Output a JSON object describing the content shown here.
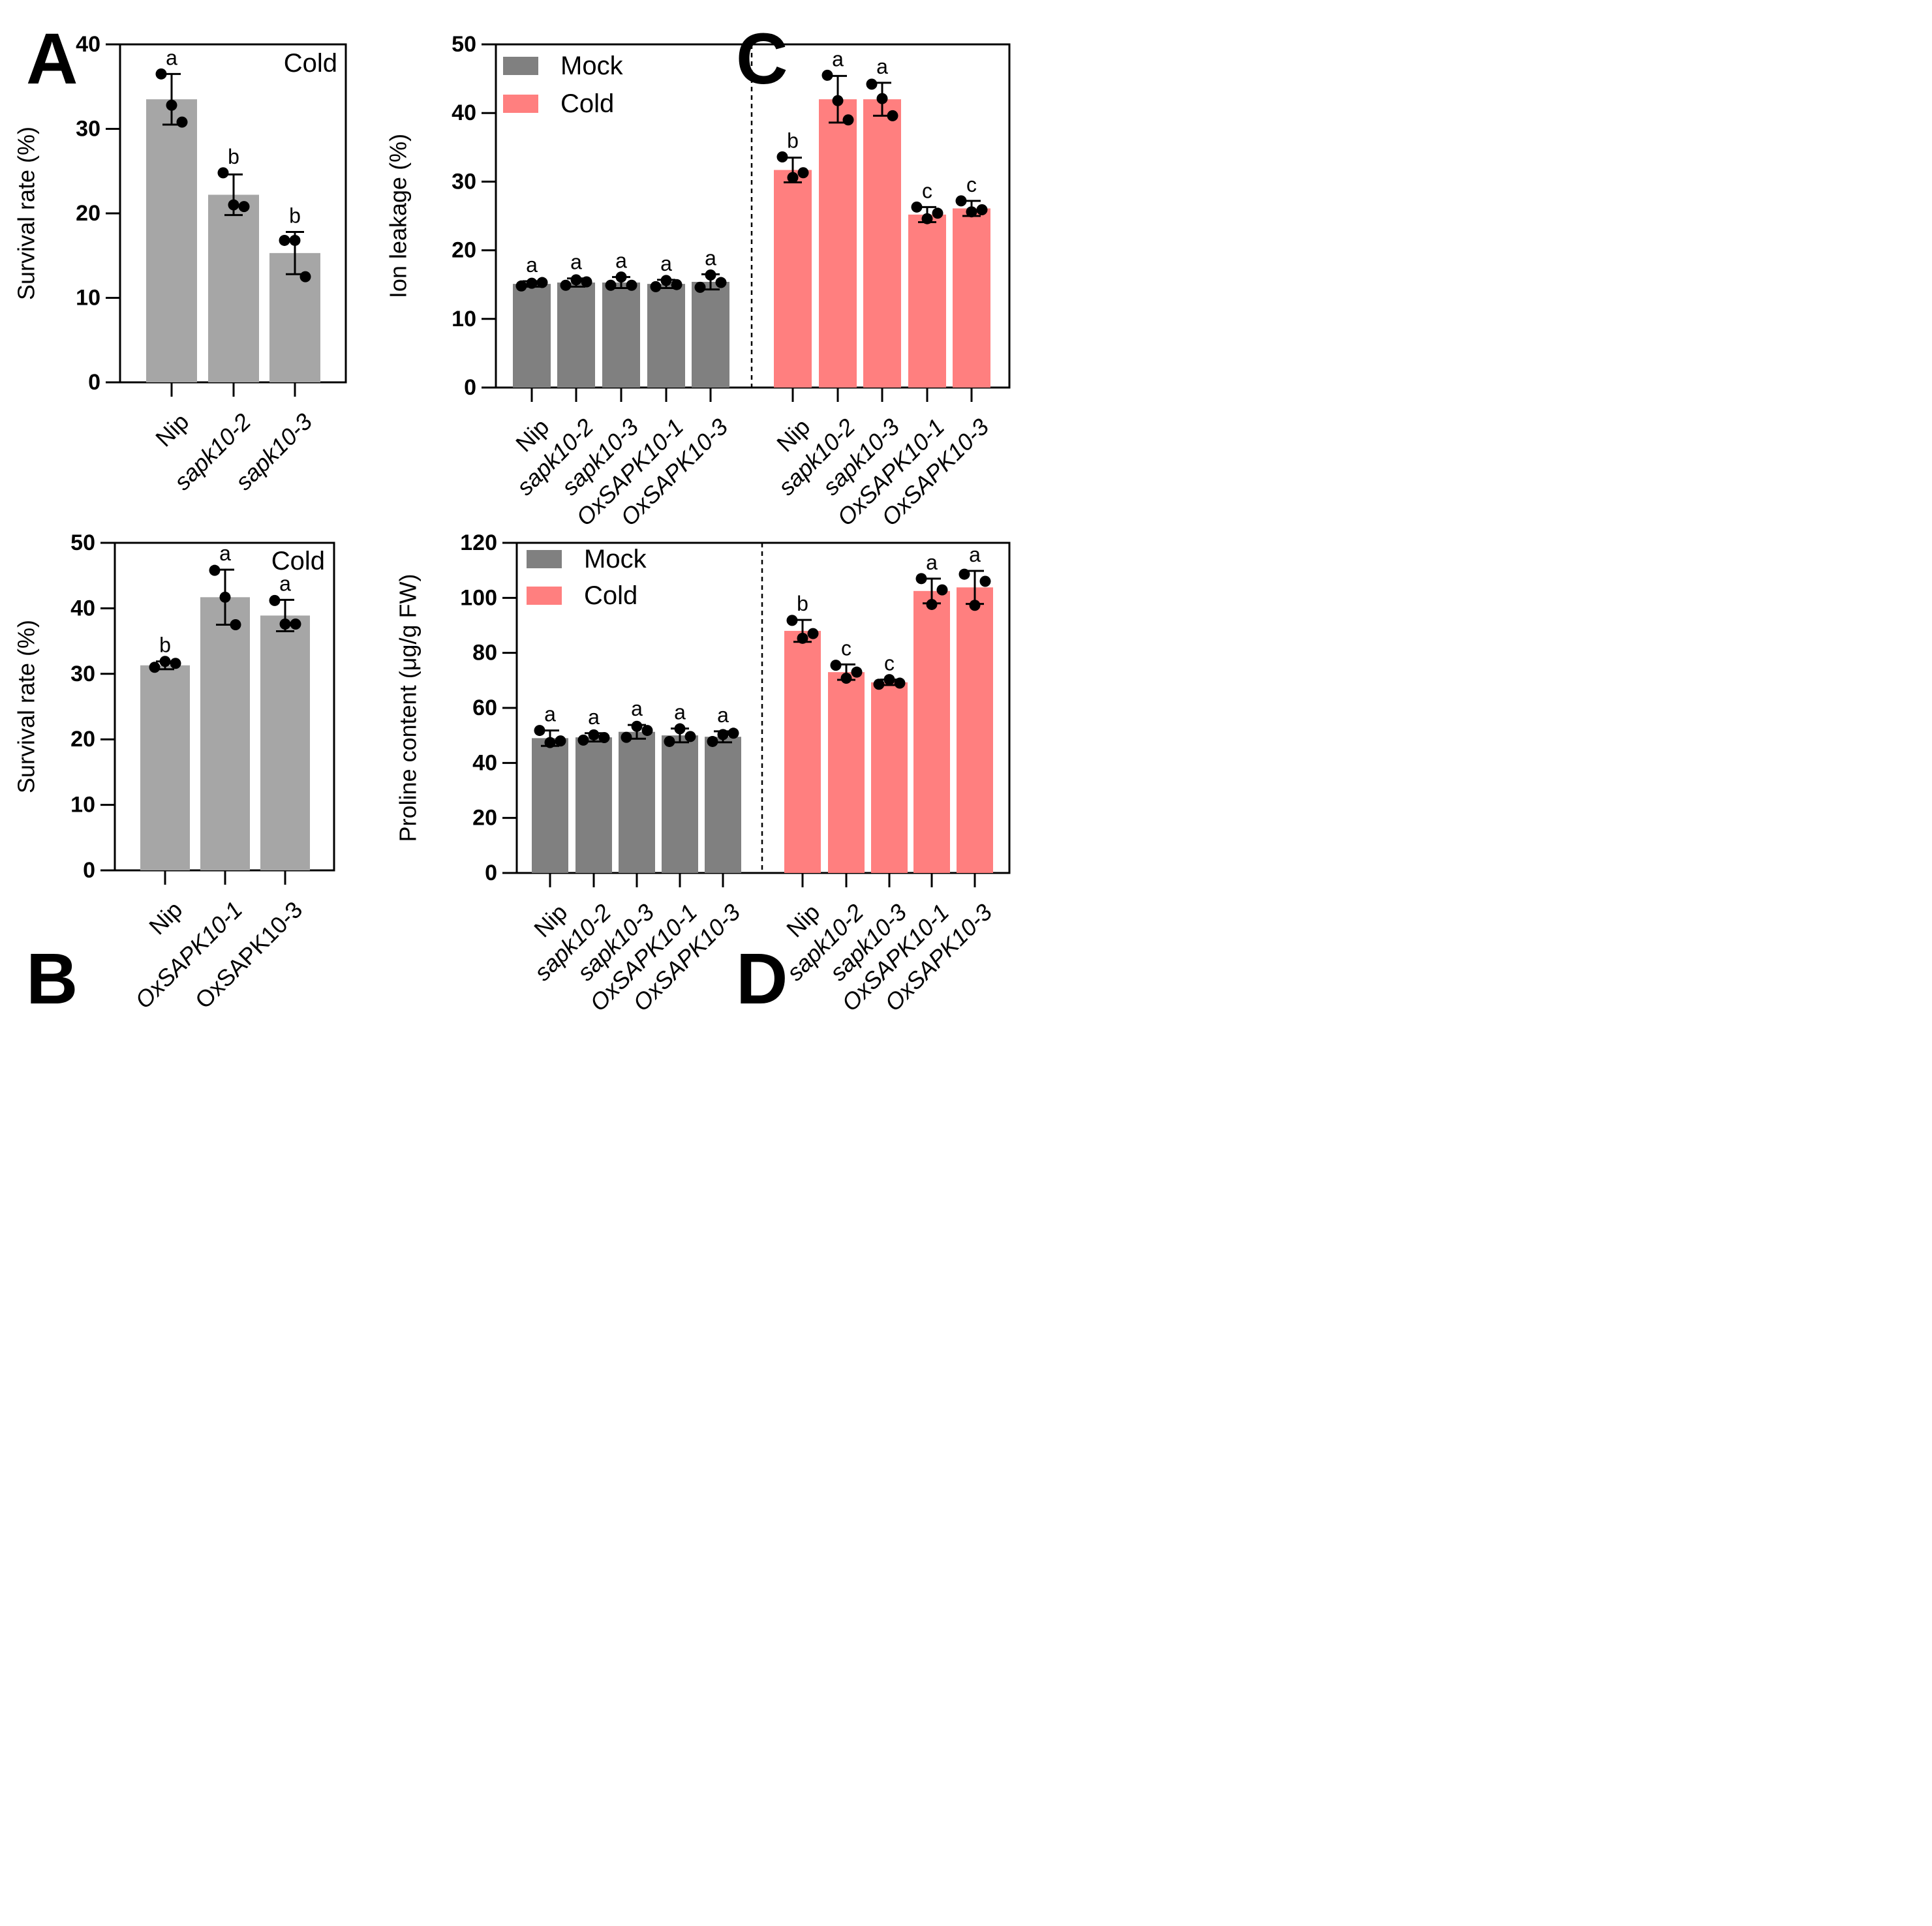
{
  "chart_data": [
    {
      "panel": "A",
      "type": "bar",
      "condition_label": "Cold",
      "ylabel": "Survival rate (%)",
      "ylim": [
        0,
        40
      ],
      "yticks": [
        0,
        10,
        20,
        30,
        40
      ],
      "categories": [
        "Nip",
        "sapk10-2",
        "sapk10-3"
      ],
      "italic_categories": [
        false,
        true,
        true
      ],
      "values": [
        33.5,
        22.2,
        15.3
      ],
      "errors": [
        3.0,
        2.4,
        2.5
      ],
      "points": [
        [
          36.5,
          32.8,
          30.8
        ],
        [
          24.8,
          21.0,
          20.8
        ],
        [
          16.8,
          16.8,
          12.5
        ]
      ],
      "letters": [
        "a",
        "b",
        "b"
      ],
      "bar_color": "#a6a6a6"
    },
    {
      "panel": "B",
      "type": "bar",
      "condition_label": "Cold",
      "ylabel": "Survival rate (%)",
      "ylim": [
        0,
        50
      ],
      "yticks": [
        0,
        10,
        20,
        30,
        40,
        50
      ],
      "categories": [
        "Nip",
        "OxSAPK10-1",
        "OxSAPK10-3"
      ],
      "italic_categories": [
        false,
        true,
        false
      ],
      "values": [
        31.3,
        41.7,
        38.9
      ],
      "errors": [
        0.6,
        4.2,
        2.4
      ],
      "points": [
        [
          31.0,
          31.9,
          31.6
        ],
        [
          45.8,
          41.7,
          37.5
        ],
        [
          41.2,
          37.6,
          37.6
        ]
      ],
      "letters": [
        "b",
        "a",
        "a"
      ],
      "bar_color": "#a6a6a6"
    },
    {
      "panel": "C",
      "type": "bar",
      "ylabel": "Ion leakage (%)",
      "ylim": [
        0,
        50
      ],
      "yticks": [
        0,
        10,
        20,
        30,
        40,
        50
      ],
      "legend": [
        "Mock",
        "Cold"
      ],
      "categories": [
        "Nip",
        "sapk10-2",
        "sapk10-3",
        "OxSAPK10-1",
        "OxSAPK10-3"
      ],
      "italic_categories": [
        false,
        true,
        true,
        true,
        true
      ],
      "series": [
        {
          "name": "Mock",
          "color": "#808080",
          "values": [
            15.1,
            15.3,
            15.3,
            15.1,
            15.4
          ],
          "errors": [
            0.4,
            0.6,
            0.8,
            0.6,
            1.1
          ],
          "points": [
            [
              14.8,
              15.2,
              15.3
            ],
            [
              14.9,
              15.7,
              15.4
            ],
            [
              14.9,
              16.1,
              14.9
            ],
            [
              14.7,
              15.6,
              15.0
            ],
            [
              14.6,
              16.4,
              15.3
            ]
          ],
          "letters": [
            "a",
            "a",
            "a",
            "a",
            "a"
          ]
        },
        {
          "name": "Cold",
          "color": "#ff7f7f",
          "values": [
            31.7,
            42.0,
            42.0,
            25.2,
            26.1
          ],
          "errors": [
            1.8,
            3.4,
            2.4,
            1.1,
            1.1
          ],
          "points": [
            [
              33.6,
              30.6,
              31.3
            ],
            [
              45.5,
              41.8,
              39.0
            ],
            [
              44.2,
              42.1,
              39.6
            ],
            [
              26.3,
              24.6,
              25.4
            ],
            [
              27.2,
              25.6,
              25.9
            ]
          ],
          "letters": [
            "b",
            "a",
            "a",
            "c",
            "c"
          ]
        }
      ]
    },
    {
      "panel": "D",
      "type": "bar",
      "ylabel": "Proline content (μg/g FW)",
      "ylim": [
        0,
        120
      ],
      "yticks": [
        0,
        20,
        40,
        60,
        80,
        100,
        120
      ],
      "legend": [
        "Mock",
        "Cold"
      ],
      "categories": [
        "Nip",
        "sapk10-2",
        "sapk10-3",
        "OxSAPK10-1",
        "OxSAPK10-3"
      ],
      "italic_categories": [
        false,
        true,
        true,
        true,
        true
      ],
      "series": [
        {
          "name": "Mock",
          "color": "#808080",
          "values": [
            49.0,
            49.3,
            51.3,
            50.0,
            49.5
          ],
          "errors": [
            2.8,
            1.5,
            2.5,
            2.5,
            2.0
          ],
          "points": [
            [
              51.8,
              47.4,
              48.0
            ],
            [
              48.3,
              50.2,
              49.2
            ],
            [
              49.3,
              53.3,
              51.8
            ],
            [
              47.8,
              52.4,
              49.6
            ],
            [
              47.8,
              50.3,
              50.8
            ]
          ],
          "letters": [
            "a",
            "a",
            "a",
            "a",
            "a"
          ]
        },
        {
          "name": "Cold",
          "color": "#ff7f7f",
          "values": [
            88.0,
            73.0,
            69.3,
            102.5,
            103.8
          ],
          "errors": [
            4.0,
            2.8,
            1.0,
            4.5,
            6.0
          ],
          "points": [
            [
              91.8,
              85.3,
              87.0
            ],
            [
              75.5,
              70.8,
              73.0
            ],
            [
              68.6,
              70.3,
              69.0
            ],
            [
              107.0,
              97.6,
              102.9
            ],
            [
              108.6,
              97.3,
              106.0
            ]
          ],
          "letters": [
            "b",
            "c",
            "c",
            "a",
            "a"
          ]
        }
      ]
    }
  ]
}
